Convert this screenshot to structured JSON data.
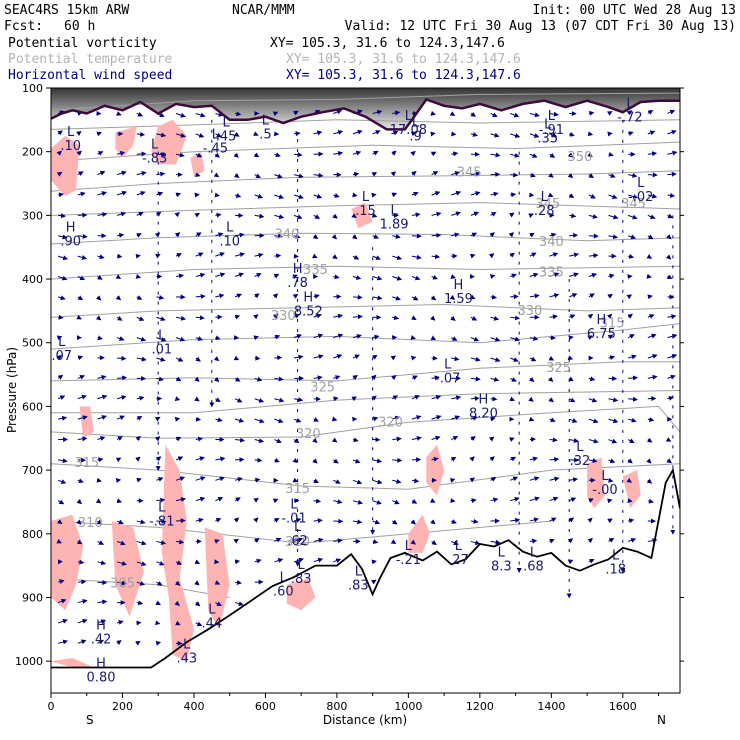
{
  "header": {
    "model": "SEAC4RS 15km ARW",
    "org": "NCAR/MMM",
    "init": "Init: 00 UTC Wed 28 Aug 13",
    "fcst_label": "Fcst:",
    "fcst_value": "60 h",
    "valid": "Valid: 12 UTC Fri 30 Aug 13 (07 CDT Fri 30 Aug 13)",
    "fields": [
      {
        "name": "Potential vorticity",
        "xy": "XY= 105.3, 31.6 to 124.3,147.6",
        "color": "#000000"
      },
      {
        "name": "Potential temperature",
        "xy": "XY= 105.3, 31.6 to 124.3,147.6",
        "color": "#b4b4b4"
      },
      {
        "name": "Horizontal wind speed",
        "xy": "XY= 105.3, 31.6 to 124.3,147.6",
        "color": "#00007f"
      }
    ]
  },
  "colors": {
    "theta": "#a0a0a0",
    "wind": "#00007f",
    "pv_fill": "#ffb4b4",
    "tropopause": "#3c0a3c",
    "terrain": "#000000",
    "stratosphere": "#404040"
  },
  "chart_data": {
    "type": "cross-section",
    "xlabel": "Distance (km)",
    "ylabel": "Pressure (hPa)",
    "xlim": [
      0,
      1760
    ],
    "ylim": [
      1050,
      100
    ],
    "x_ticks": [
      0,
      200,
      400,
      600,
      800,
      1000,
      1200,
      1400,
      1600
    ],
    "y_ticks": [
      100,
      200,
      300,
      400,
      500,
      600,
      700,
      800,
      900,
      1000
    ],
    "end_labels": {
      "left": "S",
      "right": "N"
    },
    "theta_levels": [
      {
        "label": "350",
        "x": 1480,
        "p": 208
      },
      {
        "label": "345",
        "x": 1170,
        "p": 233
      },
      {
        "label": "345",
        "x": 1630,
        "p": 282
      },
      {
        "label": "345",
        "x": 1390,
        "p": 282
      },
      {
        "label": "340",
        "x": 660,
        "p": 330
      },
      {
        "label": "340",
        "x": 1400,
        "p": 342
      },
      {
        "label": "335",
        "x": 740,
        "p": 386
      },
      {
        "label": "335",
        "x": 1400,
        "p": 390
      },
      {
        "label": "330",
        "x": 650,
        "p": 458
      },
      {
        "label": "330",
        "x": 1340,
        "p": 450
      },
      {
        "label": "325",
        "x": 760,
        "p": 570
      },
      {
        "label": "325",
        "x": 1420,
        "p": 540
      },
      {
        "label": "320",
        "x": 720,
        "p": 643
      },
      {
        "label": "320",
        "x": 950,
        "p": 625
      },
      {
        "label": "315",
        "x": 100,
        "p": 689
      },
      {
        "label": "315",
        "x": 690,
        "p": 730
      },
      {
        "label": "315",
        "x": 1570,
        "p": 470
      },
      {
        "label": "310",
        "x": 110,
        "p": 783
      },
      {
        "label": "310",
        "x": 690,
        "p": 813
      },
      {
        "label": "305",
        "x": 200,
        "p": 878
      }
    ],
    "hl_labels": [
      {
        "letter": "L",
        "value": ".10",
        "x": 55,
        "p": 180
      },
      {
        "letter": "L",
        "value": "-.83",
        "x": 290,
        "p": 200
      },
      {
        "letter": "L",
        "value": "-.45",
        "x": 460,
        "p": 184
      },
      {
        "letter": "L",
        "value": ".45",
        "x": 490,
        "p": 165
      },
      {
        "letter": "L",
        "value": ".5",
        "x": 600,
        "p": 162
      },
      {
        "letter": "L",
        "value": "17.08",
        "x": 1000,
        "p": 155
      },
      {
        "letter": "L",
        "value": ".9",
        "x": 1020,
        "p": 165
      },
      {
        "letter": "L",
        "value": "-.91",
        "x": 1400,
        "p": 155
      },
      {
        "letter": "L",
        "value": ".35",
        "x": 1390,
        "p": 168
      },
      {
        "letter": "L",
        "value": "-.72",
        "x": 1620,
        "p": 135
      },
      {
        "letter": "L",
        "value": ".15",
        "x": 880,
        "p": 282
      },
      {
        "letter": "L",
        "value": "1.89",
        "x": 960,
        "p": 303
      },
      {
        "letter": "L",
        "value": ".28",
        "x": 1380,
        "p": 282
      },
      {
        "letter": "L",
        "value": "-.02",
        "x": 1650,
        "p": 260
      },
      {
        "letter": "H",
        "value": ".90",
        "x": 55,
        "p": 330
      },
      {
        "letter": "L",
        "value": ".10",
        "x": 500,
        "p": 330
      },
      {
        "letter": "H",
        "value": ".78",
        "x": 690,
        "p": 395
      },
      {
        "letter": "H",
        "value": "8.52",
        "x": 720,
        "p": 440
      },
      {
        "letter": "H",
        "value": "1.59",
        "x": 1140,
        "p": 420
      },
      {
        "letter": "H",
        "value": "6.75",
        "x": 1540,
        "p": 475
      },
      {
        "letter": "L",
        "value": ".07",
        "x": 30,
        "p": 510
      },
      {
        "letter": "L",
        "value": ".01",
        "x": 310,
        "p": 500
      },
      {
        "letter": "L",
        "value": "-.07",
        "x": 1110,
        "p": 545
      },
      {
        "letter": "H",
        "value": "8.20",
        "x": 1210,
        "p": 600
      },
      {
        "letter": "L",
        "value": ".32",
        "x": 1480,
        "p": 675
      },
      {
        "letter": "L",
        "value": "-.00",
        "x": 1550,
        "p": 720
      },
      {
        "letter": "L",
        "value": "-.81",
        "x": 310,
        "p": 770
      },
      {
        "letter": "L",
        "value": "-.01",
        "x": 680,
        "p": 765
      },
      {
        "letter": "L",
        "value": ".62",
        "x": 690,
        "p": 800
      },
      {
        "letter": "L",
        "value": ".83",
        "x": 700,
        "p": 860
      },
      {
        "letter": "L",
        "value": "-.21",
        "x": 1000,
        "p": 830
      },
      {
        "letter": "L",
        "value": ".27",
        "x": 1140,
        "p": 830
      },
      {
        "letter": "L",
        "value": "8.3",
        "x": 1260,
        "p": 840
      },
      {
        "letter": "L",
        "value": ".68",
        "x": 1350,
        "p": 840
      },
      {
        "letter": "L",
        "value": ".18",
        "x": 1580,
        "p": 845
      },
      {
        "letter": "L",
        "value": ".60",
        "x": 650,
        "p": 880
      },
      {
        "letter": "L",
        "value": ".83",
        "x": 860,
        "p": 870
      },
      {
        "letter": "L",
        "value": ".44",
        "x": 450,
        "p": 930
      },
      {
        "letter": "H",
        "value": ".42",
        "x": 140,
        "p": 955
      },
      {
        "letter": "L",
        "value": ".43",
        "x": 380,
        "p": 985
      },
      {
        "letter": "H",
        "value": "0.80",
        "x": 140,
        "p": 1015
      }
    ],
    "tropopause": [
      [
        0,
        148
      ],
      [
        30,
        140
      ],
      [
        60,
        135
      ],
      [
        100,
        140
      ],
      [
        150,
        128
      ],
      [
        200,
        135
      ],
      [
        250,
        122
      ],
      [
        300,
        140
      ],
      [
        350,
        125
      ],
      [
        400,
        130
      ],
      [
        450,
        128
      ],
      [
        500,
        150
      ],
      [
        550,
        150
      ],
      [
        600,
        145
      ],
      [
        650,
        155
      ],
      [
        700,
        145
      ],
      [
        760,
        138
      ],
      [
        820,
        132
      ],
      [
        880,
        145
      ],
      [
        940,
        165
      ],
      [
        990,
        165
      ],
      [
        1010,
        150
      ],
      [
        1050,
        118
      ],
      [
        1100,
        128
      ],
      [
        1150,
        132
      ],
      [
        1200,
        125
      ],
      [
        1260,
        135
      ],
      [
        1320,
        125
      ],
      [
        1380,
        120
      ],
      [
        1440,
        130
      ],
      [
        1500,
        120
      ],
      [
        1560,
        130
      ],
      [
        1600,
        138
      ],
      [
        1650,
        122
      ],
      [
        1700,
        120
      ],
      [
        1760,
        120
      ]
    ],
    "terrain": [
      [
        0,
        1010
      ],
      [
        280,
        1010
      ],
      [
        320,
        995
      ],
      [
        380,
        970
      ],
      [
        440,
        950
      ],
      [
        500,
        928
      ],
      [
        560,
        905
      ],
      [
        620,
        882
      ],
      [
        680,
        868
      ],
      [
        740,
        850
      ],
      [
        800,
        850
      ],
      [
        840,
        832
      ],
      [
        870,
        855
      ],
      [
        900,
        895
      ],
      [
        920,
        870
      ],
      [
        950,
        838
      ],
      [
        990,
        830
      ],
      [
        1040,
        842
      ],
      [
        1080,
        828
      ],
      [
        1120,
        848
      ],
      [
        1160,
        840
      ],
      [
        1200,
        816
      ],
      [
        1240,
        820
      ],
      [
        1280,
        810
      ],
      [
        1320,
        828
      ],
      [
        1360,
        836
      ],
      [
        1400,
        830
      ],
      [
        1440,
        850
      ],
      [
        1480,
        858
      ],
      [
        1520,
        848
      ],
      [
        1560,
        840
      ],
      [
        1600,
        822
      ],
      [
        1640,
        828
      ],
      [
        1680,
        838
      ],
      [
        1720,
        720
      ],
      [
        1740,
        700
      ],
      [
        1760,
        760
      ]
    ],
    "pv_patches": [
      [
        [
          0,
          195
        ],
        [
          40,
          175
        ],
        [
          80,
          190
        ],
        [
          70,
          260
        ],
        [
          40,
          270
        ],
        [
          0,
          245
        ]
      ],
      [
        [
          180,
          170
        ],
        [
          240,
          160
        ],
        [
          230,
          190
        ],
        [
          200,
          210
        ],
        [
          180,
          195
        ]
      ],
      [
        [
          300,
          160
        ],
        [
          340,
          150
        ],
        [
          380,
          175
        ],
        [
          350,
          220
        ],
        [
          300,
          220
        ],
        [
          280,
          200
        ]
      ],
      [
        [
          0,
          780
        ],
        [
          60,
          770
        ],
        [
          90,
          820
        ],
        [
          70,
          880
        ],
        [
          40,
          920
        ],
        [
          0,
          900
        ]
      ],
      [
        [
          320,
          660
        ],
        [
          360,
          700
        ],
        [
          380,
          780
        ],
        [
          360,
          870
        ],
        [
          400,
          950
        ],
        [
          380,
          1000
        ],
        [
          340,
          990
        ],
        [
          330,
          900
        ],
        [
          310,
          830
        ]
      ],
      [
        [
          430,
          790
        ],
        [
          480,
          800
        ],
        [
          500,
          880
        ],
        [
          470,
          950
        ],
        [
          440,
          920
        ]
      ],
      [
        [
          170,
          780
        ],
        [
          230,
          790
        ],
        [
          260,
          860
        ],
        [
          220,
          930
        ],
        [
          180,
          880
        ]
      ],
      [
        [
          1050,
          680
        ],
        [
          1080,
          660
        ],
        [
          1100,
          700
        ],
        [
          1080,
          740
        ],
        [
          1050,
          720
        ]
      ],
      [
        [
          1000,
          800
        ],
        [
          1040,
          770
        ],
        [
          1060,
          800
        ],
        [
          1040,
          830
        ],
        [
          1000,
          830
        ]
      ],
      [
        [
          1500,
          690
        ],
        [
          1540,
          680
        ],
        [
          1550,
          740
        ],
        [
          1520,
          760
        ],
        [
          1500,
          740
        ]
      ],
      [
        [
          1600,
          710
        ],
        [
          1640,
          700
        ],
        [
          1650,
          740
        ],
        [
          1620,
          760
        ]
      ],
      [
        [
          0,
          1000
        ],
        [
          60,
          995
        ],
        [
          120,
          1010
        ],
        [
          60,
          1010
        ]
      ],
      [
        [
          840,
          290
        ],
        [
          880,
          280
        ],
        [
          900,
          310
        ],
        [
          860,
          320
        ]
      ],
      [
        [
          660,
          880
        ],
        [
          720,
          870
        ],
        [
          740,
          900
        ],
        [
          700,
          920
        ],
        [
          660,
          910
        ]
      ],
      [
        [
          80,
          600
        ],
        [
          110,
          600
        ],
        [
          120,
          640
        ],
        [
          90,
          650
        ]
      ],
      [
        [
          390,
          210
        ],
        [
          420,
          200
        ],
        [
          430,
          230
        ],
        [
          400,
          240
        ]
      ]
    ]
  },
  "axis_labels": {
    "x": "Distance (km)",
    "y": "Pressure (hPa)",
    "left": "S",
    "right": "N"
  }
}
